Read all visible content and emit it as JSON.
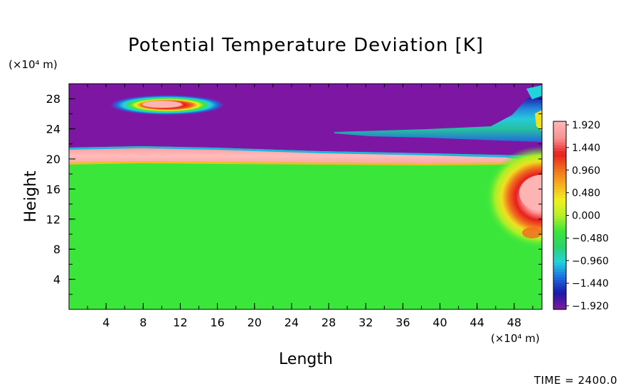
{
  "chart_data": {
    "type": "heatmap",
    "title": "Potential Temperature Deviation [K]",
    "xlabel": "Length",
    "ylabel": "Height",
    "x_unit": "(×10⁴ m)",
    "y_unit": "(×10⁴ m)",
    "xlim": [
      0,
      51
    ],
    "ylim": [
      0,
      30
    ],
    "x_ticks": [
      4,
      8,
      12,
      16,
      20,
      24,
      28,
      32,
      36,
      40,
      44,
      48
    ],
    "y_ticks": [
      4,
      8,
      12,
      16,
      20,
      24,
      28
    ],
    "colorbar": {
      "labels": [
        "1.920",
        "1.440",
        "0.960",
        "0.480",
        "0.000",
        "−0.480",
        "−0.960",
        "−1.440",
        "−1.920"
      ],
      "range": [
        -1.92,
        1.92
      ],
      "colors": [
        "#7a1a9e",
        "#1a1aa8",
        "#1e6de0",
        "#22d3dc",
        "#2bd26a",
        "#3ce63c",
        "#b4f028",
        "#f0f020",
        "#f8b020",
        "#f07020",
        "#e81e1e",
        "#f89090",
        "#ffb4b4"
      ]
    },
    "regions": [
      {
        "name": "background",
        "value": 0.05
      },
      {
        "name": "upper layer",
        "value": -1.92,
        "y_range": [
          21,
          30
        ]
      },
      {
        "name": "interface band",
        "value": 1.92,
        "y_range": [
          19.7,
          21.6
        ]
      },
      {
        "name": "upper warm anomaly",
        "value": 1.9,
        "center": [
          10,
          27.1
        ]
      },
      {
        "name": "right warm anomaly",
        "value": 1.9,
        "center": [
          50,
          16
        ]
      }
    ]
  },
  "footer": {
    "time_label": "TIME = 2400.0"
  },
  "colors": {
    "background_field": "#3be63b",
    "upper_layer": "#7d17a3",
    "interface": "#ffb6b6"
  }
}
